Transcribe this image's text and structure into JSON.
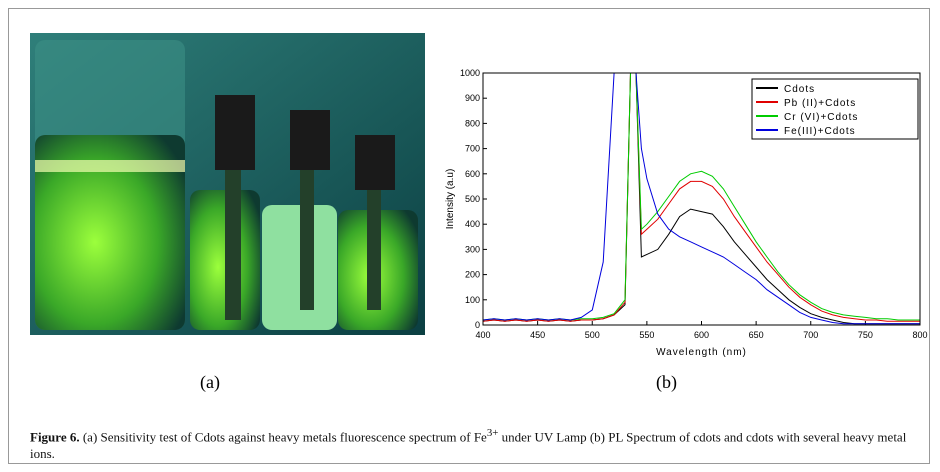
{
  "figure": {
    "panels": [
      {
        "label": "(a)"
      },
      {
        "label": "(b)"
      }
    ],
    "caption": {
      "label": "Figure 6.",
      "text": "(a) Sensitivity test of Cdots against heavy metals fluorescence spectrum of Fe",
      "superscript": "3+",
      "text_after": " under UV Lamp (b) PL Spectrum of cdots and cdots with several heavy metal ions."
    }
  },
  "chart_data": {
    "type": "line",
    "x_label": "Wavelength (nm)",
    "y_label": "Intensity (a.u)",
    "x": [
      400,
      410,
      420,
      430,
      440,
      450,
      460,
      470,
      480,
      490,
      500,
      510,
      520,
      530,
      535,
      540,
      545,
      550,
      560,
      570,
      580,
      590,
      600,
      610,
      620,
      630,
      640,
      650,
      660,
      670,
      680,
      690,
      700,
      710,
      720,
      730,
      740,
      750,
      760,
      770,
      780,
      790,
      800
    ],
    "series": [
      {
        "name": "Cdots",
        "color": "#000000",
        "values": [
          15,
          20,
          15,
          20,
          15,
          20,
          15,
          20,
          15,
          20,
          20,
          25,
          40,
          80,
          1000,
          1000,
          270,
          280,
          300,
          360,
          430,
          460,
          450,
          440,
          390,
          330,
          280,
          230,
          180,
          140,
          100,
          70,
          45,
          30,
          20,
          10,
          5,
          5,
          5,
          5,
          5,
          5,
          5
        ]
      },
      {
        "name": "Pb (II)+Cdots",
        "color": "#e00000",
        "values": [
          15,
          20,
          15,
          20,
          15,
          20,
          15,
          20,
          15,
          20,
          20,
          25,
          40,
          90,
          1000,
          1000,
          360,
          380,
          420,
          480,
          540,
          570,
          570,
          550,
          500,
          430,
          370,
          310,
          250,
          200,
          150,
          110,
          80,
          55,
          40,
          30,
          25,
          20,
          20,
          15,
          15,
          15,
          15
        ]
      },
      {
        "name": "Cr (VI)+Cdots",
        "color": "#00cc00",
        "values": [
          20,
          25,
          20,
          25,
          20,
          25,
          20,
          25,
          20,
          25,
          25,
          30,
          45,
          100,
          1000,
          1000,
          380,
          400,
          450,
          510,
          570,
          600,
          610,
          590,
          540,
          470,
          400,
          330,
          270,
          210,
          160,
          120,
          90,
          65,
          50,
          40,
          35,
          30,
          25,
          25,
          20,
          20,
          20
        ]
      },
      {
        "name": "Fe(III)+Cdots",
        "color": "#0000dd",
        "values": [
          20,
          25,
          20,
          25,
          20,
          25,
          20,
          25,
          20,
          30,
          60,
          250,
          1000,
          1000,
          1000,
          1000,
          700,
          580,
          440,
          380,
          350,
          330,
          310,
          290,
          270,
          240,
          210,
          180,
          140,
          110,
          80,
          50,
          30,
          20,
          10,
          5,
          5,
          5,
          5,
          5,
          5,
          5,
          5
        ]
      }
    ],
    "xlim": [
      400,
      800
    ],
    "ylim": [
      0,
      1000
    ],
    "xticks": [
      400,
      450,
      500,
      550,
      600,
      650,
      700,
      750,
      800
    ],
    "yticks": [
      0,
      100,
      200,
      300,
      400,
      500,
      600,
      700,
      800,
      900,
      1000
    ],
    "legend": "upper right"
  }
}
